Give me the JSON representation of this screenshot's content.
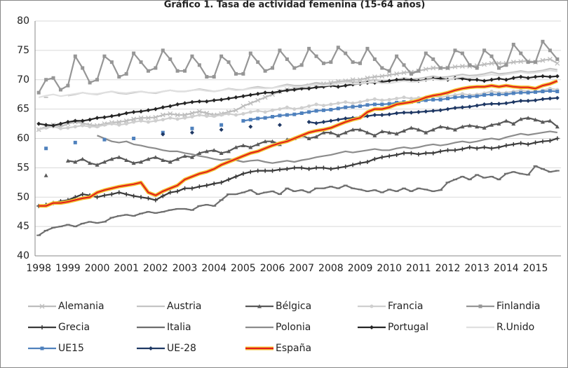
{
  "chart_data": {
    "type": "line",
    "title": "Gráfico 1. Tasa de actividad femenina (15-64 años)",
    "categories": [
      "1998",
      null,
      null,
      null,
      "1999",
      null,
      null,
      null,
      "2000",
      null,
      null,
      null,
      "2001",
      null,
      null,
      null,
      "2002",
      null,
      null,
      null,
      "2003",
      null,
      null,
      null,
      "2004",
      null,
      null,
      null,
      "2005",
      null,
      null,
      null,
      "2006",
      null,
      null,
      null,
      "2007",
      null,
      null,
      null,
      "2008",
      null,
      null,
      null,
      "2009",
      null,
      null,
      null,
      "2010",
      null,
      null,
      null,
      "2011",
      null,
      null,
      null,
      "2012",
      null,
      null,
      null,
      "2013",
      null,
      null,
      null,
      "2014",
      null,
      null,
      null,
      "2015",
      null,
      null,
      null
    ],
    "ylim": [
      40,
      80
    ],
    "yticks": [
      40,
      45,
      50,
      55,
      60,
      65,
      70,
      75,
      80
    ],
    "grid": true,
    "series": [
      {
        "name": "Alemania",
        "color": "#bdbdbd",
        "marker": "x",
        "values": [
          61.5,
          62.0,
          62.3,
          62.0,
          62.5,
          62.8,
          62.6,
          62.3,
          62.2,
          62.5,
          62.7,
          62.8,
          63.0,
          63.3,
          63.5,
          63.5,
          63.6,
          64.0,
          64.2,
          64.0,
          64.0,
          64.3,
          64.6,
          64.3,
          64.0,
          64.2,
          64.5,
          64.8,
          65.5,
          66.0,
          66.5,
          67.0,
          67.5,
          68.0,
          68.3,
          68.5,
          68.7,
          69.0,
          69.2,
          69.3,
          69.5,
          69.7,
          69.8,
          70.0,
          70.0,
          70.3,
          70.5,
          70.6,
          70.8,
          71.0,
          71.2,
          71.3,
          71.5,
          71.8,
          72.0,
          72.0,
          72.0,
          72.2,
          72.3,
          72.3,
          72.4,
          72.6,
          72.8,
          72.8,
          72.8,
          73.0,
          73.1,
          73.2,
          73.0,
          73.3,
          73.5,
          72.8
        ]
      },
      {
        "name": "Austria",
        "color": "#c4c4c4",
        "marker": "none",
        "values": [
          null,
          67.0,
          null,
          null,
          67.3,
          67.5,
          67.8,
          67.6,
          67.5,
          67.8,
          68.0,
          67.7,
          67.6,
          67.8,
          68.0,
          67.8,
          67.7,
          68.0,
          68.2,
          68.0,
          68.0,
          68.2,
          68.4,
          68.2,
          68.0,
          68.2,
          68.5,
          68.3,
          68.3,
          68.6,
          68.8,
          68.6,
          68.6,
          68.9,
          69.2,
          69.0,
          69.0,
          69.2,
          69.5,
          69.3,
          69.4,
          69.6,
          69.8,
          69.6,
          69.6,
          69.8,
          70.0,
          69.8,
          69.8,
          70.0,
          70.3,
          70.1,
          70.2,
          70.4,
          70.6,
          70.4,
          70.5,
          70.7,
          70.9,
          70.7,
          70.8,
          71.0,
          71.3,
          71.0,
          71.1,
          71.3,
          71.5,
          71.3,
          71.4,
          71.6,
          71.9,
          71.7
        ]
      },
      {
        "name": "Bélgica",
        "color": "#595959",
        "marker": "triangle",
        "values": [
          null,
          53.7,
          null,
          null,
          56.2,
          56.0,
          56.5,
          55.8,
          55.5,
          56.0,
          56.5,
          56.8,
          56.3,
          55.8,
          56.0,
          56.5,
          56.8,
          56.3,
          56.0,
          56.5,
          57.0,
          56.8,
          57.5,
          57.8,
          58.0,
          57.5,
          57.8,
          58.5,
          58.8,
          58.5,
          59.0,
          59.5,
          59.5,
          59.0,
          59.8,
          60.0,
          60.5,
          60.0,
          60.3,
          61.0,
          61.0,
          60.5,
          61.0,
          61.5,
          61.5,
          61.0,
          60.5,
          61.2,
          61.0,
          60.8,
          61.3,
          61.8,
          61.5,
          61.0,
          61.5,
          62.0,
          61.8,
          61.5,
          62.0,
          62.2,
          62.0,
          61.8,
          62.3,
          62.5,
          63.0,
          62.5,
          63.3,
          63.5,
          63.2,
          62.8,
          63.0,
          62.0
        ]
      },
      {
        "name": "Francia",
        "color": "#cfcfcf",
        "marker": "circle",
        "values": [
          61.5,
          61.8,
          62.0,
          61.7,
          61.8,
          62.0,
          62.2,
          62.0,
          62.0,
          62.3,
          62.5,
          62.3,
          62.5,
          62.8,
          63.0,
          62.8,
          63.0,
          63.2,
          63.5,
          63.3,
          63.5,
          63.7,
          64.0,
          63.8,
          63.8,
          64.0,
          64.2,
          64.0,
          64.2,
          64.5,
          64.7,
          64.5,
          64.8,
          65.0,
          65.3,
          65.0,
          65.2,
          65.5,
          65.8,
          65.6,
          65.8,
          66.0,
          66.2,
          66.0,
          66.2,
          66.5,
          66.7,
          66.5,
          66.6,
          66.8,
          67.0,
          66.8,
          66.9,
          67.0,
          67.2,
          67.0,
          67.2,
          67.4,
          67.6,
          67.4,
          67.5,
          67.7,
          68.0,
          67.8,
          67.8,
          68.0,
          68.2,
          68.0,
          68.0,
          68.2,
          68.5,
          68.3
        ]
      },
      {
        "name": "Finlandia",
        "color": "#969696",
        "marker": "square",
        "values": [
          67.8,
          70.0,
          70.3,
          68.3,
          69.0,
          74.0,
          72.0,
          69.5,
          70.0,
          74.0,
          73.0,
          70.5,
          71.0,
          74.5,
          73.0,
          71.5,
          72.0,
          75.0,
          73.5,
          71.5,
          71.5,
          74.0,
          72.5,
          70.5,
          70.5,
          74.0,
          73.0,
          71.0,
          71.0,
          74.5,
          73.0,
          71.5,
          72.0,
          75.0,
          73.5,
          72.0,
          72.5,
          75.3,
          74.0,
          72.8,
          73.0,
          75.5,
          74.5,
          73.0,
          72.8,
          75.3,
          73.5,
          72.0,
          71.5,
          74.0,
          72.5,
          71.0,
          71.5,
          74.5,
          73.5,
          72.0,
          72.0,
          75.0,
          74.5,
          72.5,
          72.0,
          75.0,
          74.0,
          72.0,
          72.5,
          76.0,
          74.5,
          73.0,
          73.0,
          76.5,
          75.0,
          73.5
        ]
      },
      {
        "name": "Grecia",
        "color": "#3a3a3a",
        "marker": "plus",
        "values": [
          48.5,
          48.7,
          49.0,
          49.3,
          49.5,
          50.0,
          50.5,
          50.3,
          50.0,
          50.3,
          50.5,
          50.8,
          50.5,
          50.2,
          50.0,
          49.8,
          49.5,
          50.2,
          50.8,
          51.0,
          51.5,
          51.5,
          51.8,
          52.0,
          52.3,
          52.5,
          53.0,
          53.5,
          54.0,
          54.3,
          54.5,
          54.5,
          54.5,
          54.7,
          54.8,
          55.0,
          55.0,
          54.8,
          55.0,
          55.0,
          54.8,
          55.0,
          55.2,
          55.5,
          55.8,
          56.0,
          56.5,
          56.8,
          57.0,
          57.2,
          57.5,
          57.5,
          57.3,
          57.5,
          57.5,
          57.8,
          58.0,
          58.0,
          58.2,
          58.5,
          58.3,
          58.5,
          58.3,
          58.5,
          58.8,
          59.0,
          59.2,
          59.0,
          59.3,
          59.5,
          59.6,
          60.0
        ]
      },
      {
        "name": "Italia",
        "color": "#6e6e6e",
        "marker": "dash",
        "values": [
          43.5,
          44.3,
          44.8,
          45.0,
          45.3,
          45.0,
          45.5,
          45.8,
          45.6,
          45.8,
          46.5,
          46.8,
          47.0,
          46.8,
          47.2,
          47.5,
          47.3,
          47.5,
          47.8,
          48.0,
          48.0,
          47.8,
          48.5,
          48.7,
          48.5,
          49.5,
          50.5,
          50.5,
          50.8,
          51.2,
          50.5,
          50.8,
          51.0,
          50.5,
          51.5,
          51.0,
          51.2,
          50.8,
          51.5,
          51.5,
          51.8,
          51.5,
          52.0,
          51.5,
          51.3,
          51.0,
          51.2,
          50.8,
          51.3,
          51.0,
          51.5,
          51.0,
          51.5,
          51.3,
          51.0,
          51.2,
          52.5,
          53.0,
          53.5,
          53.0,
          53.8,
          53.3,
          53.5,
          53.0,
          54.0,
          54.3,
          54.0,
          53.8,
          55.3,
          54.8,
          54.3,
          54.5
        ]
      },
      {
        "name": "Polonia",
        "color": "#8c8c8c",
        "marker": "none",
        "values": [
          null,
          null,
          null,
          null,
          null,
          null,
          null,
          null,
          60.5,
          60.0,
          59.5,
          59.3,
          59.5,
          59.0,
          58.8,
          58.5,
          58.3,
          58.0,
          57.8,
          57.8,
          57.5,
          57.3,
          57.0,
          56.8,
          56.5,
          56.3,
          56.5,
          56.3,
          56.0,
          56.2,
          56.3,
          56.0,
          55.8,
          56.0,
          56.2,
          56.0,
          56.3,
          56.5,
          56.8,
          57.0,
          57.2,
          57.5,
          57.8,
          57.6,
          57.8,
          58.0,
          58.2,
          58.0,
          58.0,
          58.3,
          58.5,
          58.3,
          58.5,
          58.8,
          59.0,
          58.8,
          59.0,
          59.3,
          59.5,
          59.3,
          59.5,
          59.8,
          60.0,
          59.8,
          60.2,
          60.5,
          60.8,
          60.6,
          60.8,
          61.0,
          61.2,
          61.0
        ]
      },
      {
        "name": "Portugal",
        "color": "#262626",
        "marker": "diamond",
        "values": [
          62.5,
          62.3,
          62.2,
          62.5,
          62.8,
          63.0,
          63.0,
          63.2,
          63.5,
          63.6,
          63.8,
          64.0,
          64.3,
          64.5,
          64.6,
          64.8,
          65.0,
          65.3,
          65.5,
          65.8,
          66.0,
          66.2,
          66.3,
          66.3,
          66.5,
          66.6,
          66.8,
          67.0,
          67.2,
          67.4,
          67.6,
          67.8,
          67.8,
          68.0,
          68.2,
          68.3,
          68.5,
          68.5,
          68.7,
          68.8,
          69.0,
          68.8,
          69.0,
          69.2,
          69.3,
          69.5,
          69.5,
          69.6,
          69.8,
          70.0,
          70.0,
          70.0,
          69.8,
          70.0,
          70.2,
          70.2,
          70.0,
          70.3,
          70.2,
          70.0,
          70.0,
          69.8,
          70.0,
          70.2,
          70.0,
          70.3,
          70.5,
          70.3,
          70.5,
          70.6,
          70.5,
          70.6
        ]
      },
      {
        "name": "R.Unido",
        "color": "#e0e0e0",
        "marker": "none",
        "values": [
          67.0,
          67.3,
          67.5,
          67.2,
          67.4,
          67.6,
          67.8,
          67.6,
          67.6,
          67.8,
          68.0,
          67.8,
          67.7,
          67.9,
          68.0,
          67.8,
          67.8,
          68.0,
          68.2,
          68.0,
          68.0,
          68.2,
          68.3,
          68.1,
          68.0,
          68.2,
          68.4,
          68.2,
          68.3,
          68.5,
          68.6,
          68.5,
          68.6,
          68.8,
          69.0,
          68.8,
          68.8,
          69.0,
          69.2,
          69.0,
          69.1,
          69.3,
          69.5,
          69.3,
          69.3,
          69.5,
          69.6,
          69.4,
          69.4,
          69.6,
          69.8,
          69.6,
          69.7,
          69.9,
          70.1,
          69.9,
          70.0,
          70.3,
          70.5,
          70.3,
          70.5,
          70.7,
          70.9,
          70.7,
          70.9,
          71.1,
          71.3,
          71.1,
          71.2,
          71.4,
          71.6,
          71.4
        ]
      },
      {
        "name": "UE15",
        "color": "#4f81bd",
        "marker": "square",
        "values": [
          null,
          58.3,
          null,
          null,
          null,
          59.3,
          null,
          null,
          null,
          59.8,
          null,
          null,
          null,
          60.0,
          null,
          null,
          null,
          61.0,
          null,
          null,
          null,
          61.7,
          null,
          null,
          null,
          62.3,
          null,
          null,
          63.0,
          63.2,
          63.4,
          63.5,
          63.7,
          63.9,
          64.0,
          64.1,
          64.3,
          64.5,
          64.7,
          64.8,
          64.9,
          65.1,
          65.3,
          65.4,
          65.5,
          65.7,
          65.8,
          65.8,
          65.9,
          66.1,
          66.2,
          66.2,
          66.3,
          66.5,
          66.6,
          66.6,
          66.8,
          67.0,
          67.1,
          67.1,
          67.2,
          67.4,
          67.5,
          67.5,
          67.5,
          67.7,
          67.8,
          67.8,
          67.9,
          68.0,
          68.1,
          68.0
        ]
      },
      {
        "name": "UE-28",
        "color": "#1f3864",
        "marker": "diamond",
        "values": [
          null,
          null,
          null,
          null,
          null,
          null,
          null,
          null,
          null,
          null,
          null,
          null,
          null,
          null,
          null,
          null,
          null,
          60.7,
          null,
          null,
          null,
          61.0,
          null,
          null,
          null,
          61.5,
          null,
          null,
          null,
          62.0,
          null,
          null,
          null,
          62.3,
          null,
          null,
          null,
          62.8,
          62.6,
          62.8,
          63.0,
          63.2,
          63.4,
          63.5,
          63.6,
          63.8,
          64.0,
          64.0,
          64.1,
          64.3,
          64.4,
          64.4,
          64.5,
          64.6,
          64.7,
          64.8,
          65.0,
          65.2,
          65.3,
          65.4,
          65.6,
          65.8,
          65.9,
          65.9,
          66.0,
          66.2,
          66.4,
          66.4,
          66.5,
          66.7,
          66.8,
          66.9
        ]
      },
      {
        "name": "España",
        "color": "#e31a1c",
        "outline": "#f2c12e",
        "marker": "none",
        "values": [
          48.5,
          48.5,
          49.0,
          49.0,
          49.2,
          49.5,
          49.8,
          50.0,
          50.8,
          51.2,
          51.5,
          51.8,
          52.0,
          52.2,
          52.5,
          50.8,
          50.3,
          51.0,
          51.5,
          52.0,
          53.0,
          53.5,
          54.0,
          54.3,
          54.8,
          55.5,
          56.0,
          56.5,
          57.0,
          57.5,
          57.8,
          58.3,
          58.8,
          59.2,
          59.5,
          60.0,
          60.5,
          61.0,
          61.3,
          61.5,
          61.8,
          62.3,
          62.8,
          63.2,
          63.5,
          64.5,
          65.0,
          65.0,
          65.3,
          65.8,
          66.0,
          66.2,
          66.5,
          67.0,
          67.3,
          67.5,
          67.8,
          68.2,
          68.5,
          68.7,
          68.8,
          68.8,
          69.0,
          68.8,
          69.0,
          68.8,
          68.7,
          68.7,
          68.5,
          69.0,
          69.3,
          69.8
        ]
      }
    ]
  }
}
